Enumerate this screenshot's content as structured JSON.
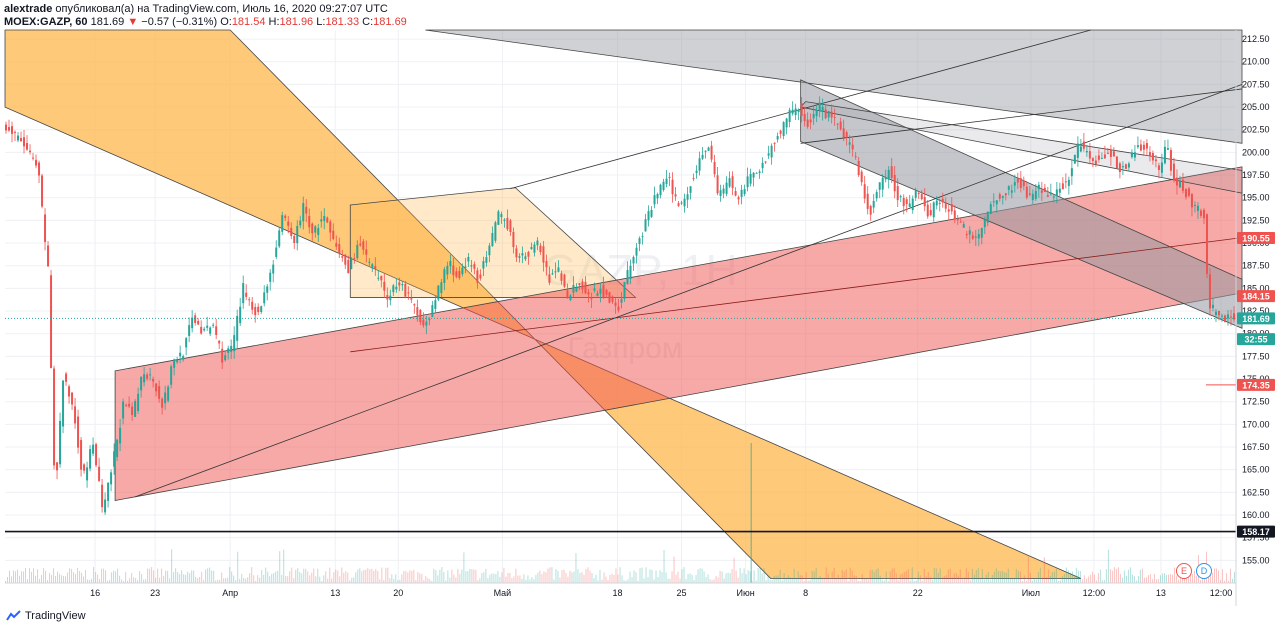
{
  "header": {
    "author": "alextrade",
    "published": "опубликовал(а) на TradingView.com, Июль 16, 2020 09:27:07 UTC",
    "symbol": "MOEX:GAZP, 60",
    "last": "181.69",
    "arrow": "▼",
    "change": "−0.57 (−0.31%)",
    "o_label": "O:",
    "o_value": "181.54",
    "h_label": "H:",
    "h_value": "181.96",
    "l_label": "L:",
    "l_value": "181.33",
    "c_label": "C:",
    "c_value": "181.69"
  },
  "watermark": {
    "ticker": "GAZP, 1H",
    "name": "Газпром"
  },
  "footer": {
    "brand": "TradingView"
  },
  "events": {
    "e": "E",
    "d": "D"
  },
  "colors": {
    "orange_fill": "#ffb74d",
    "red_fill": "#ef5350",
    "gray_fill": "#9598a1",
    "up": "#26a69a",
    "down": "#ef5350"
  },
  "chart_data": {
    "type": "candlestick",
    "ylim": [
      152.5,
      213.5
    ],
    "y_ticks": [
      "155.00",
      "157.50",
      "160.00",
      "162.50",
      "165.00",
      "167.50",
      "170.00",
      "172.50",
      "175.00",
      "177.50",
      "180.00",
      "182.50",
      "185.00",
      "187.50",
      "190.00",
      "192.50",
      "195.00",
      "197.50",
      "200.00",
      "202.50",
      "205.00",
      "207.50",
      "210.00",
      "212.50"
    ],
    "x_ticks": [
      {
        "label": "16",
        "i": 90
      },
      {
        "label": "23",
        "i": 150
      },
      {
        "label": "Апр",
        "i": 225
      },
      {
        "label": "13",
        "i": 330
      },
      {
        "label": "20",
        "i": 393
      },
      {
        "label": "Май",
        "i": 497
      },
      {
        "label": "18",
        "i": 612
      },
      {
        "label": "25",
        "i": 676
      },
      {
        "label": "Июн",
        "i": 740
      },
      {
        "label": "8",
        "i": 800
      },
      {
        "label": "22",
        "i": 912
      },
      {
        "label": "Июл",
        "i": 1025
      },
      {
        "label": "12:00",
        "i": 1088
      },
      {
        "label": "13",
        "i": 1155
      },
      {
        "label": "12:00",
        "i": 1215
      }
    ],
    "price_labels": [
      {
        "value": 190.55,
        "text": "190.55",
        "color": "#ef5350"
      },
      {
        "value": 184.15,
        "text": "184.15",
        "color": "#ef5350"
      },
      {
        "value": 181.69,
        "text": "181.69",
        "color": "#26a69a"
      },
      {
        "value": 179.4,
        "text": "32:55",
        "color": "#26a69a"
      },
      {
        "value": 174.35,
        "text": "174.35",
        "color": "#ef5350"
      },
      {
        "value": 158.17,
        "text": "158.17",
        "color": "#131722"
      }
    ],
    "horizontal_line": 158.17,
    "current_price": 181.69,
    "price_path": [
      [
        0,
        203
      ],
      [
        20,
        201
      ],
      [
        35,
        198
      ],
      [
        45,
        187
      ],
      [
        52,
        162
      ],
      [
        60,
        175
      ],
      [
        70,
        172
      ],
      [
        80,
        164
      ],
      [
        90,
        168
      ],
      [
        100,
        160
      ],
      [
        110,
        166
      ],
      [
        120,
        172
      ],
      [
        130,
        171
      ],
      [
        140,
        176
      ],
      [
        150,
        175
      ],
      [
        160,
        172
      ],
      [
        170,
        177
      ],
      [
        180,
        178
      ],
      [
        190,
        182
      ],
      [
        200,
        180
      ],
      [
        210,
        181
      ],
      [
        220,
        177
      ],
      [
        230,
        179
      ],
      [
        240,
        185
      ],
      [
        255,
        182
      ],
      [
        270,
        188
      ],
      [
        280,
        193
      ],
      [
        290,
        190
      ],
      [
        300,
        194
      ],
      [
        310,
        191
      ],
      [
        320,
        193
      ],
      [
        330,
        190
      ],
      [
        345,
        187
      ],
      [
        355,
        190
      ],
      [
        365,
        188
      ],
      [
        375,
        186
      ],
      [
        385,
        184
      ],
      [
        395,
        186
      ],
      [
        405,
        184
      ],
      [
        415,
        182
      ],
      [
        425,
        181
      ],
      [
        435,
        185
      ],
      [
        445,
        188
      ],
      [
        455,
        186
      ],
      [
        465,
        188
      ],
      [
        475,
        186
      ],
      [
        485,
        189
      ],
      [
        495,
        193
      ],
      [
        505,
        192
      ],
      [
        515,
        188
      ],
      [
        525,
        189
      ],
      [
        535,
        190
      ],
      [
        545,
        186
      ],
      [
        555,
        187
      ],
      [
        565,
        184
      ],
      [
        575,
        186
      ],
      [
        585,
        184
      ],
      [
        595,
        185
      ],
      [
        605,
        184
      ],
      [
        615,
        183
      ],
      [
        625,
        187
      ],
      [
        635,
        190
      ],
      [
        645,
        193
      ],
      [
        655,
        196
      ],
      [
        665,
        197
      ],
      [
        675,
        194
      ],
      [
        685,
        196
      ],
      [
        695,
        199
      ],
      [
        705,
        201
      ],
      [
        715,
        195
      ],
      [
        725,
        197
      ],
      [
        735,
        195
      ],
      [
        745,
        197
      ],
      [
        755,
        198
      ],
      [
        765,
        200
      ],
      [
        775,
        202
      ],
      [
        785,
        204
      ],
      [
        795,
        205
      ],
      [
        805,
        203
      ],
      [
        815,
        205
      ],
      [
        825,
        204
      ],
      [
        835,
        203
      ],
      [
        845,
        201
      ],
      [
        855,
        198
      ],
      [
        865,
        193
      ],
      [
        875,
        196
      ],
      [
        885,
        198
      ],
      [
        895,
        195
      ],
      [
        905,
        194
      ],
      [
        915,
        196
      ],
      [
        925,
        193
      ],
      [
        935,
        195
      ],
      [
        945,
        194
      ],
      [
        955,
        192
      ],
      [
        965,
        191
      ],
      [
        975,
        191
      ],
      [
        985,
        194
      ],
      [
        995,
        195
      ],
      [
        1005,
        196
      ],
      [
        1015,
        197
      ],
      [
        1025,
        195
      ],
      [
        1035,
        196
      ],
      [
        1045,
        195
      ],
      [
        1055,
        196
      ],
      [
        1065,
        197
      ],
      [
        1075,
        201
      ],
      [
        1085,
        200
      ],
      [
        1095,
        199
      ],
      [
        1105,
        200
      ],
      [
        1115,
        198
      ],
      [
        1125,
        199
      ],
      [
        1135,
        201
      ],
      [
        1145,
        200
      ],
      [
        1155,
        198
      ],
      [
        1162,
        201
      ],
      [
        1170,
        197
      ],
      [
        1180,
        196
      ],
      [
        1190,
        194
      ],
      [
        1200,
        193
      ],
      [
        1205,
        183
      ],
      [
        1215,
        182
      ],
      [
        1225,
        181.69
      ]
    ]
  }
}
